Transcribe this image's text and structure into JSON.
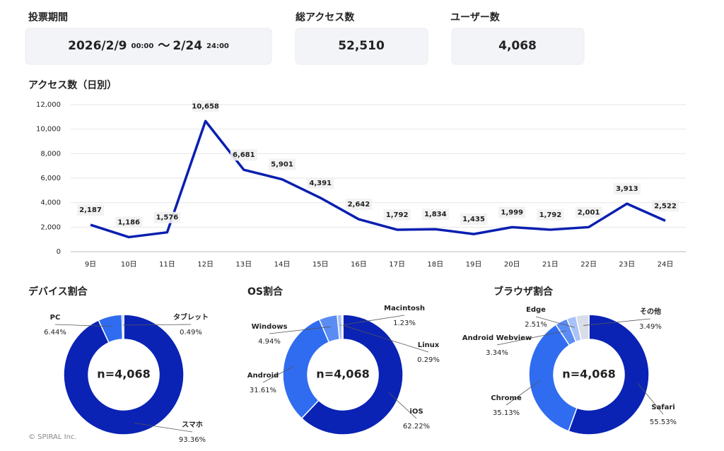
{
  "stats": {
    "period": {
      "label": "投票期間",
      "start_date": "2026/2/9",
      "start_time": "00:00",
      "separator": "～",
      "end_date": "2/24",
      "end_time": "24:00"
    },
    "total_access": {
      "label": "総アクセス数",
      "value": "52,510"
    },
    "users": {
      "label": "ユーザー数",
      "value": "4,068"
    }
  },
  "chart_data": [
    {
      "type": "line",
      "title": "アクセス数（日別）",
      "categories": [
        "9日",
        "10日",
        "11日",
        "12日",
        "13日",
        "14日",
        "15日",
        "16日",
        "17日",
        "18日",
        "19日",
        "20日",
        "21日",
        "22日",
        "23日",
        "24日"
      ],
      "values": [
        2187,
        1186,
        1576,
        10658,
        6681,
        5901,
        4391,
        2642,
        1792,
        1834,
        1435,
        1999,
        1792,
        2001,
        3913,
        2522
      ],
      "value_labels": [
        "2,187",
        "1,186",
        "1,576",
        "10,658",
        "6,681",
        "5,901",
        "4,391",
        "2,642",
        "1,792",
        "1,834",
        "1,435",
        "1,999",
        "1,792",
        "2,001",
        "3,913",
        "2,522"
      ],
      "color": "#0a1fb0",
      "ylim": [
        0,
        12000
      ],
      "yticks": [
        0,
        {
          "value": 2000,
          "label": "2,000"
        },
        {
          "value": 4000,
          "label": "4,000"
        },
        {
          "value": 6000,
          "label": "6,000"
        },
        {
          "value": 8000,
          "label": "8,000"
        },
        {
          "value": 10000,
          "label": "10,000"
        },
        {
          "value": 12000,
          "label": "12,000"
        }
      ],
      "grid": true
    },
    {
      "type": "pie",
      "title": "デバイス割合",
      "center_label": "n=4,068",
      "categories": [
        "スマホ",
        "PC",
        "タブレット"
      ],
      "values": [
        93.36,
        6.44,
        0.49
      ],
      "value_labels": [
        "93.36%",
        "6.44%",
        "0.49%"
      ],
      "colors": [
        "#0a23b4",
        "#2f6cf0",
        "#8fb0f5"
      ]
    },
    {
      "type": "pie",
      "title": "OS割合",
      "center_label": "n=4,068",
      "categories": [
        "iOS",
        "Android",
        "Windows",
        "Macintosh",
        "Linux"
      ],
      "values": [
        62.22,
        31.61,
        4.94,
        1.23,
        0.29
      ],
      "value_labels": [
        "62.22%",
        "31.61%",
        "4.94%",
        "1.23%",
        "0.29%"
      ],
      "colors": [
        "#0a23b4",
        "#2f6cf0",
        "#5a8cf3",
        "#a9c1f7",
        "#d4def8"
      ]
    },
    {
      "type": "pie",
      "title": "ブラウザ割合",
      "center_label": "n=4,068",
      "categories": [
        "Safari",
        "Chrome",
        "Android Webview",
        "Edge",
        "その他"
      ],
      "values": [
        55.53,
        35.13,
        3.34,
        2.51,
        3.49
      ],
      "value_labels": [
        "55.53%",
        "35.13%",
        "3.34%",
        "2.51%",
        "3.49%"
      ],
      "colors": [
        "#0a23b4",
        "#2f6cf0",
        "#5a8cf3",
        "#a9c1f7",
        "#d8dde8"
      ]
    }
  ],
  "footer": "© SPIRAL Inc."
}
